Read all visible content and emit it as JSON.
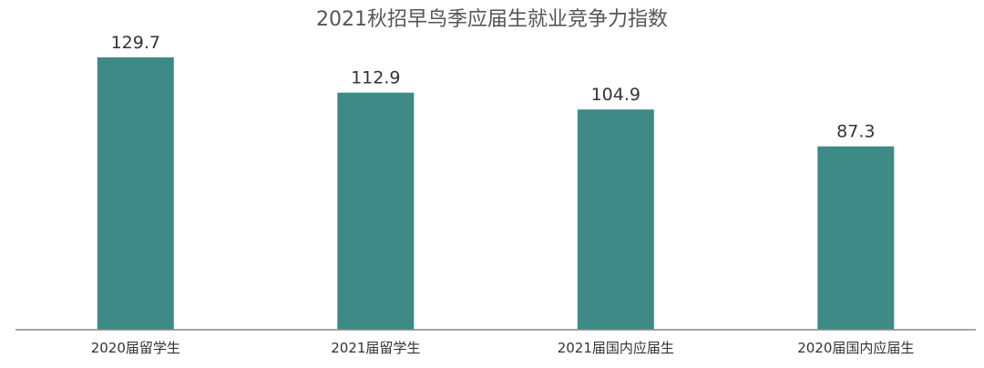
{
  "chart_data": {
    "type": "bar",
    "title": "2021秋招早鸟季应届生就业竞争力指数",
    "categories": [
      "2020届留学生",
      "2021届留学生",
      "2021届国内应届生",
      "2020届国内应届生"
    ],
    "values": [
      129.7,
      112.9,
      104.9,
      87.3
    ],
    "xlabel": "",
    "ylabel": "",
    "ylim": [
      0,
      129.7
    ],
    "grid": false,
    "legend": "none",
    "bar_color": "#3d8a86",
    "axis_color": "#888888"
  }
}
